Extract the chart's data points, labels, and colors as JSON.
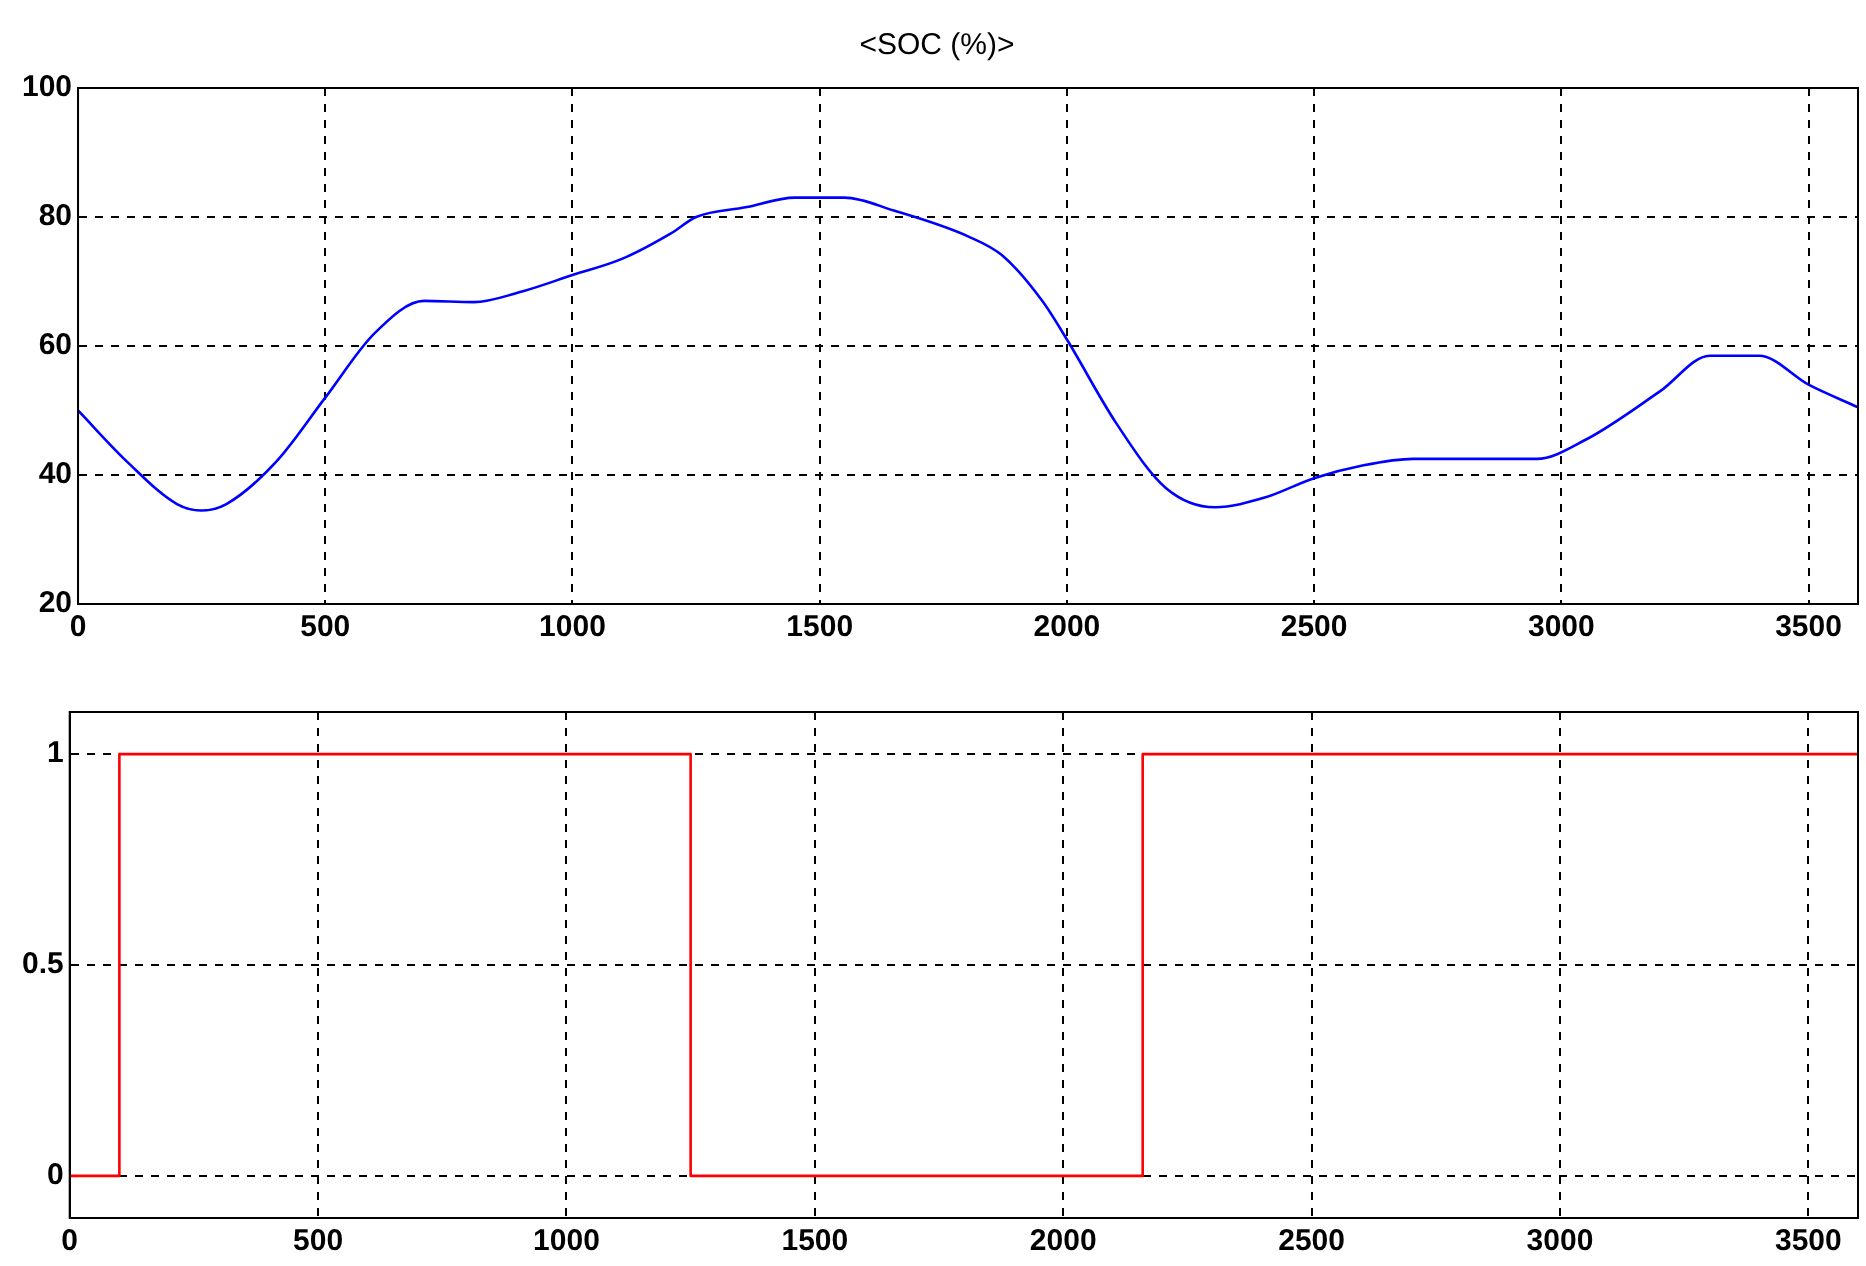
{
  "chart_data": [
    {
      "type": "line",
      "title": "<SOC (%)>",
      "x": [
        0,
        100,
        200,
        250,
        300,
        400,
        500,
        600,
        700,
        800,
        900,
        1000,
        1100,
        1200,
        1250,
        1350,
        1450,
        1550,
        1650,
        1800,
        1870,
        1950,
        2000,
        2100,
        2200,
        2300,
        2400,
        2500,
        2600,
        2700,
        2950,
        3050,
        3200,
        3300,
        3400,
        3500,
        3600
      ],
      "series": [
        {
          "color": "#0000ff",
          "values": [
            50,
            42,
            35.5,
            34.5,
            35.5,
            42,
            52,
            62,
            67,
            66.8,
            68.5,
            71,
            73.5,
            77.5,
            80,
            81.5,
            83,
            83,
            81,
            77,
            74,
            67,
            61,
            48,
            38,
            35,
            36.5,
            39.5,
            41.5,
            42.5,
            42.5,
            45.5,
            53,
            58.5,
            58.5,
            54,
            50.5
          ]
        }
      ],
      "xlim": [
        0,
        3600
      ],
      "xticks": [
        0,
        500,
        1000,
        1500,
        2000,
        2500,
        3000,
        3500
      ],
      "ylim": [
        20,
        100
      ],
      "yticks": [
        20,
        40,
        60,
        80,
        100
      ],
      "grid": true,
      "marker": "none"
    },
    {
      "type": "step",
      "x": [
        0,
        100,
        1250,
        2160,
        3600
      ],
      "series": [
        {
          "color": "#ff0000",
          "values": [
            0,
            1,
            0,
            1,
            1
          ]
        }
      ],
      "xlim": [
        0,
        3600
      ],
      "xticks": [
        0,
        500,
        1000,
        1500,
        2000,
        2500,
        3000,
        3500
      ],
      "ylim": [
        -0.1,
        1.1
      ],
      "yticks": [
        0,
        0.5,
        1
      ],
      "grid": true,
      "marker": "none"
    }
  ]
}
